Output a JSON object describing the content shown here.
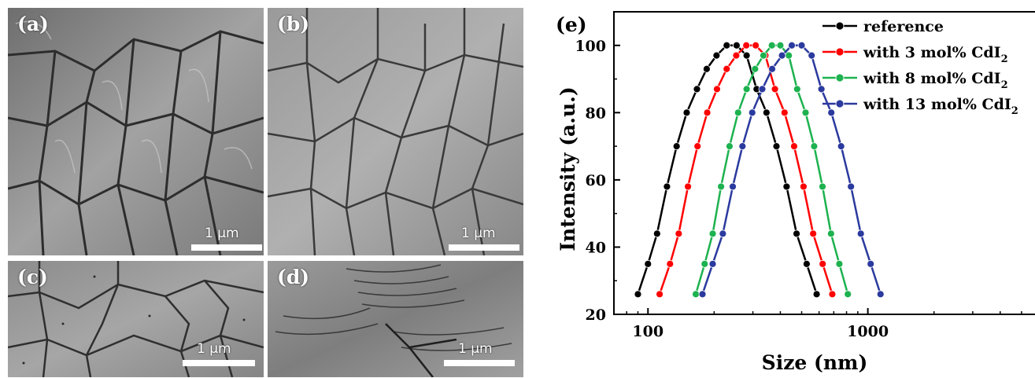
{
  "sem_panels": [
    {
      "label": "(a)",
      "scale_text": "1 µm"
    },
    {
      "label": "(b)",
      "scale_text": "1 µm"
    },
    {
      "label": "(c)",
      "scale_text": "1 µm"
    },
    {
      "label": "(d)",
      "scale_text": "1 µm"
    }
  ],
  "chart_data": {
    "type": "line",
    "panel_label": "(e)",
    "xlabel": "Size (nm)",
    "ylabel": "Intensity (a.u.)",
    "xscale": "log",
    "xlim": [
      70,
      6000
    ],
    "ylim": [
      20,
      110
    ],
    "xticks": [
      100,
      1000
    ],
    "yticks": [
      20,
      40,
      60,
      80,
      100
    ],
    "grid": false,
    "legend_position": "top-right",
    "series": [
      {
        "name": "reference",
        "legend_main": "reference",
        "legend_sub": "",
        "color": "#000000",
        "x": [
          90,
          100,
          110,
          122,
          135,
          150,
          167,
          185,
          205,
          228,
          253,
          281,
          312,
          346,
          384,
          427,
          474,
          527,
          585
        ],
        "y": [
          26,
          35,
          44,
          58,
          70,
          80,
          87,
          93,
          97,
          100,
          100,
          97,
          87,
          80,
          70,
          58,
          44,
          35,
          26
        ]
      },
      {
        "name": "with 3 mol% CdI2",
        "legend_main": "with 3 mol% CdI",
        "legend_sub": "2",
        "color": "#ff0000",
        "x": [
          113,
          126,
          138,
          152,
          168,
          186,
          206,
          228,
          252,
          280,
          309,
          342,
          378,
          418,
          462,
          510,
          564,
          623,
          689
        ],
        "y": [
          26,
          35,
          44,
          58,
          70,
          80,
          87,
          93,
          97,
          100,
          100,
          97,
          87,
          80,
          70,
          58,
          44,
          35,
          26
        ]
      },
      {
        "name": "with 8 mol% CdI2",
        "legend_main": "with 8 mol% CdI",
        "legend_sub": "2",
        "color": "#1db24f",
        "x": [
          165,
          181,
          197,
          215,
          235,
          257,
          281,
          307,
          335,
          366,
          400,
          437,
          477,
          521,
          570,
          622,
          680,
          742,
          811
        ],
        "y": [
          26,
          35,
          44,
          58,
          70,
          80,
          87,
          93,
          97,
          100,
          100,
          97,
          87,
          80,
          70,
          58,
          44,
          35,
          26
        ]
      },
      {
        "name": "with 13 mol% CdI2",
        "legend_main": "with 13 mol% CdI",
        "legend_sub": "2",
        "color": "#2b3a9e",
        "x": [
          177,
          197,
          219,
          243,
          269,
          298,
          331,
          367,
          407,
          451,
          500,
          555,
          615,
          682,
          756,
          838,
          929,
          1030,
          1142
        ],
        "y": [
          26,
          35,
          44,
          58,
          70,
          80,
          87,
          93,
          97,
          100,
          100,
          97,
          87,
          80,
          70,
          58,
          44,
          35,
          26
        ]
      }
    ]
  }
}
